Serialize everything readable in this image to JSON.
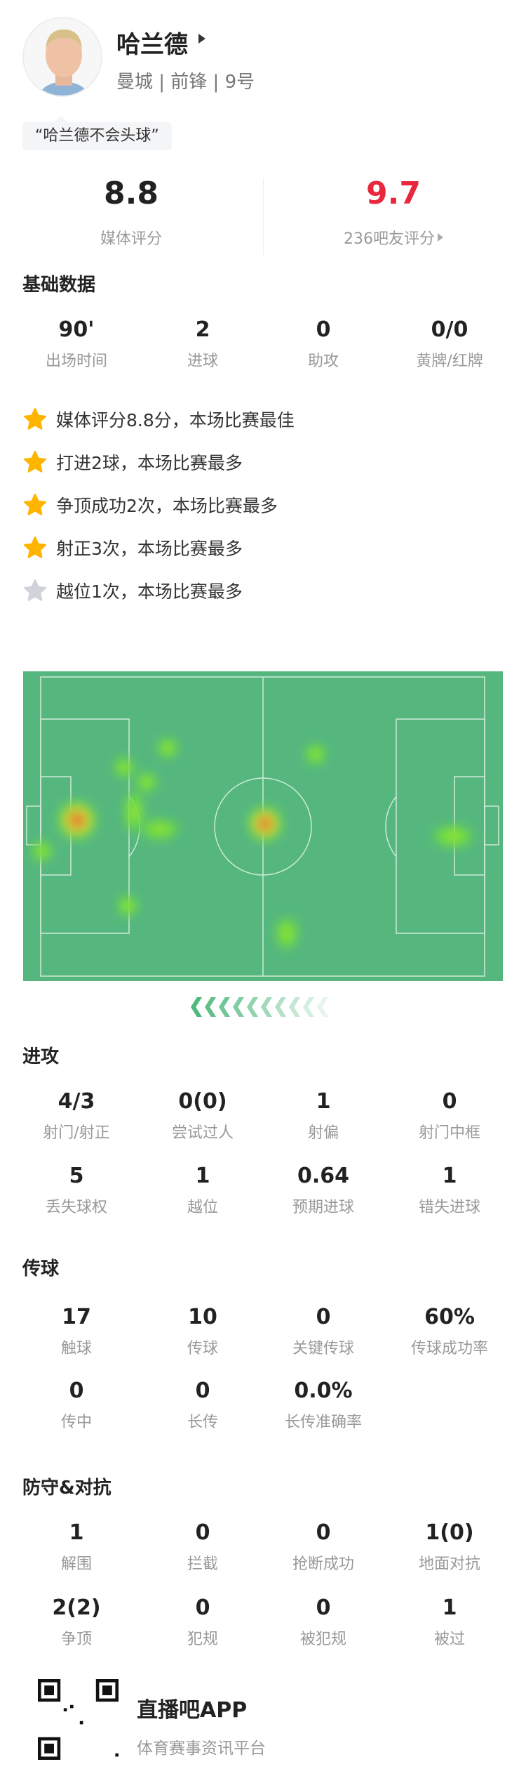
{
  "player": {
    "name": "哈兰德",
    "info": "曼城 | 前锋 | 9号",
    "quote": "“哈兰德不会头球”"
  },
  "ratings": {
    "media_value": "8.8",
    "media_label": "媒体评分",
    "fan_value": "9.7",
    "fan_label": "236吧友评分",
    "fan_color": "#e8283c"
  },
  "basic": {
    "title": "基础数据",
    "stats": [
      {
        "value": "90'",
        "label": "出场时间"
      },
      {
        "value": "2",
        "label": "进球"
      },
      {
        "value": "0",
        "label": "助攻"
      },
      {
        "value": "0/0",
        "label": "黄牌/红牌"
      }
    ]
  },
  "highlights": [
    {
      "text": "媒体评分8.8分，本场比赛最佳",
      "icon": "star-gold-icon"
    },
    {
      "text": "打进2球，本场比赛最多",
      "icon": "star-gold-icon"
    },
    {
      "text": "争顶成功2次，本场比赛最多",
      "icon": "star-gold-icon"
    },
    {
      "text": "射正3次，本场比赛最多",
      "icon": "star-gold-icon"
    },
    {
      "text": "越位1次，本场比赛最多",
      "icon": "star-silver-icon"
    }
  ],
  "attack": {
    "title": "进攻",
    "stats": [
      {
        "value": "4/3",
        "label": "射门/射正"
      },
      {
        "value": "0(0)",
        "label": "尝试过人"
      },
      {
        "value": "1",
        "label": "射偏"
      },
      {
        "value": "0",
        "label": "射门中框"
      },
      {
        "value": "5",
        "label": "丢失球权"
      },
      {
        "value": "1",
        "label": "越位"
      },
      {
        "value": "0.64",
        "label": "预期进球"
      },
      {
        "value": "1",
        "label": "错失进球"
      }
    ]
  },
  "passing": {
    "title": "传球",
    "stats": [
      {
        "value": "17",
        "label": "触球"
      },
      {
        "value": "10",
        "label": "传球"
      },
      {
        "value": "0",
        "label": "关键传球"
      },
      {
        "value": "60%",
        "label": "传球成功率"
      },
      {
        "value": "0",
        "label": "传中"
      },
      {
        "value": "0",
        "label": "长传"
      },
      {
        "value": "0.0%",
        "label": "长传准确率"
      }
    ]
  },
  "defense": {
    "title": "防守&对抗",
    "stats": [
      {
        "value": "1",
        "label": "解围"
      },
      {
        "value": "0",
        "label": "拦截"
      },
      {
        "value": "0",
        "label": "抢断成功"
      },
      {
        "value": "1(0)",
        "label": "地面对抗"
      },
      {
        "value": "2(2)",
        "label": "争顶"
      },
      {
        "value": "0",
        "label": "犯规"
      },
      {
        "value": "0",
        "label": "被犯规"
      },
      {
        "value": "1",
        "label": "被过"
      }
    ]
  },
  "footer": {
    "app_name": "直播吧APP",
    "subtitle": "体育赛事资讯平台"
  },
  "colors": {
    "pitch": "#55b77e",
    "star_gold": "#ffb400",
    "star_silver": "#d0d3da"
  }
}
